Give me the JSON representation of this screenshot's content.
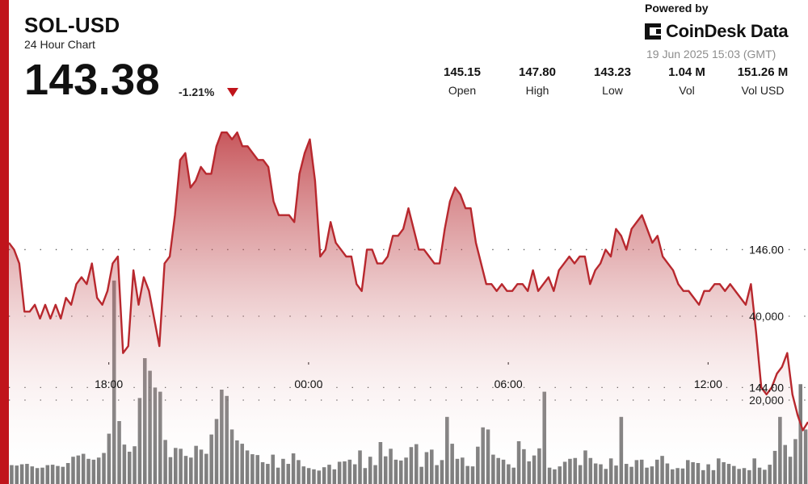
{
  "header": {
    "ticker": "SOL-USD",
    "subtitle": "24 Hour Chart",
    "price": "143.38",
    "change": "-1.21%"
  },
  "branding": {
    "powered_by": "Powered by",
    "name": "CoinDesk Data",
    "timestamp": "19 Jun 2025 15:03 (GMT)"
  },
  "stats": [
    {
      "value": "145.15",
      "label": "Open"
    },
    {
      "value": "147.80",
      "label": "High"
    },
    {
      "value": "143.23",
      "label": "Low"
    },
    {
      "value": "1.04 M",
      "label": "Vol"
    },
    {
      "value": "151.26 M",
      "label": "Vol USD"
    }
  ],
  "colors": {
    "accent": "#c0141b",
    "line": "#b8282e",
    "volume": "#6b6b6b"
  },
  "chart_data": {
    "type": "area",
    "x_tick_labels": [
      "18:00",
      "00:00",
      "06:00",
      "12:00"
    ],
    "x_ticks_hours": [
      3,
      9,
      15,
      21
    ],
    "x_range_hours": [
      0,
      24
    ],
    "y_tick_labels": [
      "146.00",
      "144.00"
    ],
    "y_ticks": [
      146,
      144
    ],
    "ylim": [
      142.6,
      148.1
    ],
    "price_series": [
      146.1,
      146.0,
      145.8,
      145.1,
      145.1,
      145.2,
      145.0,
      145.2,
      145.0,
      145.2,
      145.0,
      145.3,
      145.2,
      145.5,
      145.6,
      145.5,
      145.8,
      145.3,
      145.2,
      145.4,
      145.8,
      145.9,
      144.5,
      144.6,
      145.7,
      145.2,
      145.6,
      145.4,
      145.0,
      144.6,
      145.8,
      145.9,
      146.5,
      147.3,
      147.4,
      146.9,
      147.0,
      147.2,
      147.1,
      147.1,
      147.5,
      147.7,
      147.7,
      147.6,
      147.7,
      147.5,
      147.5,
      147.4,
      147.3,
      147.3,
      147.2,
      146.7,
      146.5,
      146.5,
      146.5,
      146.4,
      147.1,
      147.4,
      147.6,
      147.0,
      145.9,
      146.0,
      146.4,
      146.1,
      146.0,
      145.9,
      145.9,
      145.5,
      145.4,
      146.0,
      146.0,
      145.8,
      145.8,
      145.9,
      146.2,
      146.2,
      146.3,
      146.6,
      146.3,
      146.0,
      146.0,
      145.9,
      145.8,
      145.8,
      146.3,
      146.7,
      146.9,
      146.8,
      146.6,
      146.6,
      146.1,
      145.8,
      145.5,
      145.5,
      145.4,
      145.5,
      145.4,
      145.4,
      145.5,
      145.5,
      145.4,
      145.7,
      145.4,
      145.5,
      145.6,
      145.4,
      145.7,
      145.8,
      145.9,
      145.8,
      145.9,
      145.9,
      145.5,
      145.7,
      145.8,
      146.0,
      145.9,
      146.3,
      146.2,
      146.0,
      146.3,
      146.4,
      146.5,
      146.3,
      146.1,
      146.2,
      145.9,
      145.8,
      145.7,
      145.5,
      145.4,
      145.4,
      145.3,
      145.2,
      145.4,
      145.4,
      145.5,
      145.5,
      145.4,
      145.5,
      145.4,
      145.3,
      145.2,
      145.5,
      144.8,
      144.0,
      143.9,
      144.0,
      144.2,
      144.3,
      144.5,
      143.9,
      143.6,
      143.38,
      143.5
    ],
    "volume_axis_labels": [
      "40,000",
      "20,000"
    ],
    "volume_axis_values": [
      40000,
      20000
    ],
    "volume_series": [
      4500,
      4400,
      4700,
      4800,
      4200,
      3800,
      3900,
      4500,
      4600,
      4300,
      4100,
      5000,
      6500,
      6800,
      7200,
      6000,
      5800,
      6300,
      7400,
      12000,
      48500,
      15000,
      9400,
      7700,
      9000,
      20500,
      30000,
      27000,
      23000,
      22000,
      10500,
      6400,
      8600,
      8400,
      6700,
      6300,
      9100,
      8200,
      7200,
      11800,
      15500,
      22500,
      21000,
      13000,
      10400,
      9600,
      8000,
      7100,
      6900,
      5200,
      4800,
      7000,
      3900,
      6000,
      4800,
      7300,
      5700,
      4200,
      3800,
      3500,
      3200,
      4000,
      4600,
      3500,
      5300,
      5400,
      5800,
      4700,
      8000,
      3800,
      6500,
      4500,
      10000,
      6600,
      8400,
      5800,
      5600,
      6300,
      8800,
      9500,
      4100,
      7600,
      8200,
      4500,
      5700,
      16000,
      9600,
      6000,
      6300,
      4300,
      4200,
      8900,
      13500,
      13000,
      7000,
      6200,
      5800,
      4700,
      3900,
      10200,
      8300,
      5400,
      6800,
      8500,
      22000,
      3900,
      3500,
      4200,
      5300,
      6000,
      6200,
      4500,
      8000,
      6200,
      4900,
      4700,
      3600,
      6100,
      4400,
      16000,
      4800,
      4100,
      5700,
      5800,
      3900,
      4200,
      5800,
      6700,
      4900,
      3500,
      3800,
      3700,
      5700,
      5200,
      5000,
      3300,
      4700,
      3300,
      6100,
      5200,
      4800,
      4300,
      3600,
      3800,
      3300,
      6100,
      3900,
      3400,
      4600,
      7900,
      16000,
      9300,
      6500,
      10700,
      23800,
      13000
    ]
  }
}
